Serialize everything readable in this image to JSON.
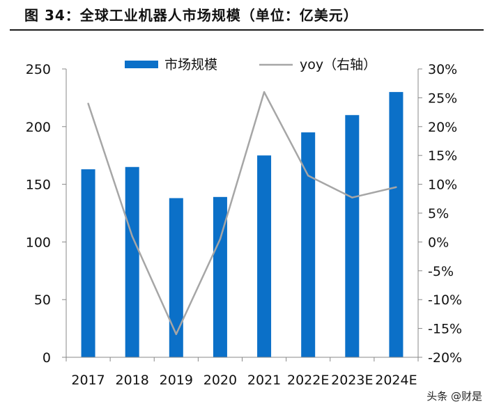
{
  "header": {
    "title": "图 34：全球工业机器人市场规模（单位：亿美元）"
  },
  "watermark": {
    "text": "头条 @财是"
  },
  "chart_data": {
    "type": "bar+line",
    "categories": [
      "2017",
      "2018",
      "2019",
      "2020",
      "2021",
      "2022E",
      "2023E",
      "2024E"
    ],
    "series": [
      {
        "name": "市场规模",
        "type": "bar",
        "axis": "left",
        "color": "#0B70C8",
        "values": [
          163,
          165,
          138,
          139,
          175,
          195,
          210,
          230
        ]
      },
      {
        "name": "yoy（右轴）",
        "type": "line",
        "axis": "right",
        "color": "#A6A6A6",
        "values": [
          24,
          1,
          -16,
          0.5,
          26,
          11.5,
          7.7,
          9.5
        ]
      }
    ],
    "y_left": {
      "min": 0,
      "max": 250,
      "ticks": [
        "0",
        "50",
        "100",
        "150",
        "200",
        "250"
      ]
    },
    "y_right": {
      "min": -20,
      "max": 30,
      "unit": "%",
      "ticks": [
        "-20%",
        "-15%",
        "-10%",
        "-5%",
        "0%",
        "5%",
        "10%",
        "15%",
        "20%",
        "25%",
        "30%"
      ]
    },
    "legend_position": "top-center",
    "grid": false
  }
}
